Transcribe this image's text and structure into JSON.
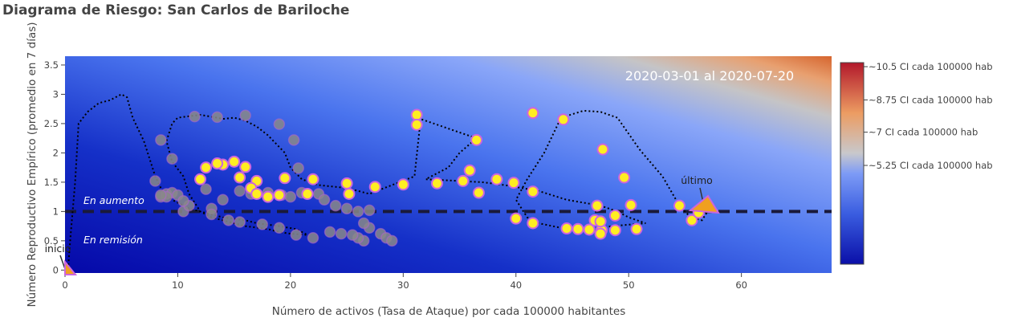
{
  "chart_data": {
    "type": "scatter",
    "title": "Diagrama de Riesgo: San Carlos de Bariloche",
    "xlabel": "Número de activos (Tasa de Ataque) por cada 100000 habitantes",
    "ylabel": "Número Reproductivo Empírico (promedio en 7 días)",
    "xlim": [
      0,
      68
    ],
    "ylim": [
      -0.05,
      3.65
    ],
    "xticks": [
      0,
      10,
      20,
      30,
      40,
      50,
      60
    ],
    "yticks": [
      0,
      0.5,
      1,
      1.5,
      2,
      2.5,
      3,
      3.5
    ],
    "date_range": "2020-03-01 al 2020-07-20",
    "threshold_y": 1,
    "region_labels": {
      "above": "En aumento",
      "below": "En remisión"
    },
    "annotations": {
      "start": "inicio",
      "end": "último"
    },
    "colorbar": {
      "ticks": [
        "~10.5 CI cada 100000 hab",
        "~8.75 CI cada 100000 hab",
        "~7 CI cada 100000 hab",
        "~5.25 CI cada 100000 hab"
      ],
      "colors": [
        "#0a0fa8",
        "#3a5de0",
        "#6f8ff5",
        "#c8c8c8",
        "#e8955a",
        "#b2182b"
      ]
    },
    "marker_colors": {
      "recent_fill": "#ffee22",
      "recent_edge": "#cc66dd",
      "old_fill": "#888888",
      "old_edge": "#aa66cc"
    },
    "trajectory": {
      "x": [
        0.2,
        0.3,
        0.5,
        0.9,
        1.2,
        2.0,
        3.0,
        4.0,
        5.0,
        5.5,
        6.0,
        7.0,
        8.0,
        8.5,
        9.0,
        10.0,
        11.0,
        12.0,
        14.0,
        16.0,
        17.0,
        19.0,
        20.5,
        21.0,
        21.5,
        20.0,
        19.0,
        18.0,
        16.0,
        15.0,
        13.0,
        12.0,
        11.0,
        10.5,
        9.5,
        9.0,
        9.5,
        10.0,
        12.0,
        13.5,
        14.0,
        15.0,
        16.0,
        17.0,
        18.0,
        19.5,
        20.0,
        21.0,
        22.5,
        25.0,
        26.0,
        27.0,
        29.0,
        31.0,
        31.5,
        31.2,
        36.5,
        35.0,
        34.0,
        32.0,
        37.0,
        39.0,
        42.0,
        44.5,
        47.5,
        49.0,
        50.0,
        51.5,
        48.5,
        47.0,
        46.0,
        44.0,
        42.0,
        41.0,
        40.0,
        41.0,
        42.5,
        44.0,
        46.0,
        47.5,
        49.0,
        51.0,
        53.0,
        54.5,
        55.5,
        56.5,
        57.0
      ],
      "y": [
        0.02,
        0.1,
        0.6,
        1.5,
        2.5,
        2.7,
        2.85,
        2.9,
        3.0,
        2.95,
        2.6,
        2.2,
        1.6,
        1.4,
        1.25,
        1.15,
        1.05,
        1.0,
        0.9,
        0.85,
        0.8,
        0.75,
        0.7,
        0.65,
        0.6,
        0.62,
        0.65,
        0.7,
        0.75,
        0.8,
        0.9,
        1.0,
        1.3,
        1.6,
        1.85,
        2.2,
        2.5,
        2.6,
        2.65,
        2.6,
        2.58,
        2.6,
        2.55,
        2.45,
        2.3,
        2.0,
        1.75,
        1.55,
        1.45,
        1.4,
        1.35,
        1.3,
        1.45,
        1.6,
        2.5,
        2.6,
        2.25,
        2.0,
        1.75,
        1.55,
        1.5,
        1.45,
        1.35,
        1.2,
        1.1,
        1.0,
        0.9,
        0.8,
        0.75,
        0.7,
        0.7,
        0.72,
        0.8,
        0.9,
        1.2,
        1.55,
        2.0,
        2.6,
        2.72,
        2.7,
        2.6,
        2.05,
        1.6,
        1.1,
        0.9,
        0.85,
        1.0
      ]
    },
    "points_recent": {
      "x": [
        31.2,
        31.2,
        36.5,
        35.9,
        35.3,
        36.7,
        41.5,
        44.2,
        47.7,
        49.6,
        50.2,
        33.0,
        30.0,
        27.5,
        25.0,
        25.2,
        22.0,
        21.5,
        19.5,
        17.0,
        16.5,
        15.5,
        16.0,
        15.0,
        14.0,
        13.5,
        12.5,
        12.0,
        17.0,
        18.0,
        19.0,
        38.3,
        39.8,
        41.5,
        47.2,
        48.8,
        47.0,
        45.5,
        47.6,
        50.7,
        44.5,
        41.5,
        40.0,
        54.5,
        55.6,
        56.2,
        47.5,
        48.8,
        47.5,
        46.5
      ],
      "y": [
        2.65,
        2.48,
        2.22,
        1.7,
        1.52,
        1.32,
        2.68,
        2.57,
        2.06,
        1.58,
        1.11,
        1.48,
        1.46,
        1.42,
        1.48,
        1.3,
        1.55,
        1.3,
        1.57,
        1.52,
        1.4,
        1.58,
        1.76,
        1.85,
        1.8,
        1.82,
        1.75,
        1.55,
        1.3,
        1.25,
        1.28,
        1.55,
        1.49,
        1.34,
        1.1,
        0.93,
        0.85,
        0.7,
        0.68,
        0.7,
        0.71,
        0.8,
        0.88,
        1.1,
        0.85,
        0.98,
        0.83,
        0.68,
        0.62,
        0.69
      ],
      "size": [
        1,
        1,
        1,
        1,
        1,
        1,
        1,
        1,
        1,
        1,
        1,
        1,
        1,
        1,
        1,
        1,
        1,
        1,
        1,
        1,
        1,
        1,
        1,
        1,
        1,
        1,
        1,
        1,
        1,
        1,
        1,
        1,
        1,
        1,
        1,
        1,
        1,
        1,
        1,
        1,
        1,
        1,
        1,
        1,
        1,
        1,
        1,
        1,
        1,
        1
      ]
    },
    "points_old": {
      "x": [
        11.5,
        13.5,
        16.0,
        19.0,
        20.3,
        20.7,
        8.5,
        9.5,
        8.0,
        8.5,
        9.0,
        9.5,
        10.0,
        10.5,
        12.5,
        13.0,
        14.0,
        15.5,
        16.5,
        18.0,
        19.2,
        20.0,
        21.0,
        22.5,
        23.0,
        24.0,
        25.0,
        26.0,
        27.0,
        28.0,
        28.5,
        29.0,
        26.5,
        26.0,
        25.5,
        24.5,
        23.5,
        22.0,
        20.5,
        19.0,
        17.5,
        15.5,
        14.5,
        13.0,
        11.0,
        10.5,
        9.0,
        8.5,
        27.0,
        26.5
      ],
      "y": [
        2.62,
        2.61,
        2.64,
        2.49,
        2.22,
        1.74,
        2.22,
        1.9,
        1.52,
        1.25,
        1.3,
        1.32,
        1.28,
        1.0,
        1.38,
        1.05,
        1.2,
        1.35,
        1.3,
        1.32,
        1.28,
        1.25,
        1.32,
        1.3,
        1.2,
        1.1,
        1.05,
        1.0,
        1.02,
        0.62,
        0.55,
        0.5,
        0.5,
        0.55,
        0.6,
        0.62,
        0.65,
        0.55,
        0.6,
        0.72,
        0.78,
        0.82,
        0.85,
        0.95,
        1.1,
        1.18,
        1.25,
        1.28,
        0.72,
        0.8
      ]
    }
  }
}
